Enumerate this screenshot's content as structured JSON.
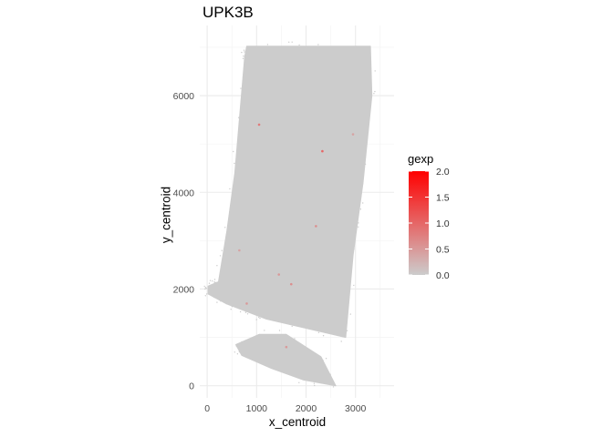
{
  "chart_data": {
    "type": "scatter",
    "title": "UPK3B",
    "xlabel": "x_centroid",
    "ylabel": "y_centroid",
    "xlim": [
      -150,
      3780
    ],
    "ylim": [
      -250,
      7450
    ],
    "x_ticks": [
      0,
      1000,
      2000,
      3000
    ],
    "y_ticks": [
      0,
      2000,
      4000,
      6000
    ],
    "grid": true,
    "base_color": "#cccccc",
    "high_color": "#ff0000",
    "color_scale": {
      "title": "gexp",
      "min": 0.0,
      "max": 2.0,
      "ticks": [
        "0.0",
        "0.5",
        "1.0",
        "1.5",
        "2.0"
      ],
      "position": "right"
    },
    "regions": [
      {
        "name": "main-tissue-section",
        "polygon": [
          [
            800,
            7020
          ],
          [
            3300,
            7020
          ],
          [
            3330,
            6000
          ],
          [
            3150,
            4200
          ],
          [
            2950,
            2700
          ],
          [
            2800,
            1000
          ],
          [
            1200,
            1380
          ],
          [
            380,
            1700
          ],
          [
            20,
            1900
          ],
          [
            20,
            2060
          ],
          [
            230,
            2150
          ],
          [
            400,
            3200
          ],
          [
            560,
            4400
          ],
          [
            660,
            5600
          ],
          [
            760,
            6800
          ]
        ]
      },
      {
        "name": "lower-tissue-fragment",
        "polygon": [
          [
            580,
            850
          ],
          [
            1050,
            1060
          ],
          [
            1600,
            1060
          ],
          [
            2300,
            600
          ],
          [
            2600,
            0
          ],
          [
            1950,
            120
          ],
          [
            1300,
            360
          ],
          [
            700,
            630
          ]
        ]
      }
    ],
    "highlighted_points": [
      {
        "x": 1050,
        "y": 5400,
        "gexp": 0.8
      },
      {
        "x": 2330,
        "y": 4850,
        "gexp": 1.0
      },
      {
        "x": 2200,
        "y": 3300,
        "gexp": 0.6
      },
      {
        "x": 1450,
        "y": 2300,
        "gexp": 0.5
      },
      {
        "x": 1700,
        "y": 2100,
        "gexp": 0.6
      },
      {
        "x": 800,
        "y": 1700,
        "gexp": 0.5
      },
      {
        "x": 2950,
        "y": 5200,
        "gexp": 0.4
      },
      {
        "x": 650,
        "y": 2800,
        "gexp": 0.4
      },
      {
        "x": 1600,
        "y": 800,
        "gexp": 0.5
      }
    ]
  }
}
